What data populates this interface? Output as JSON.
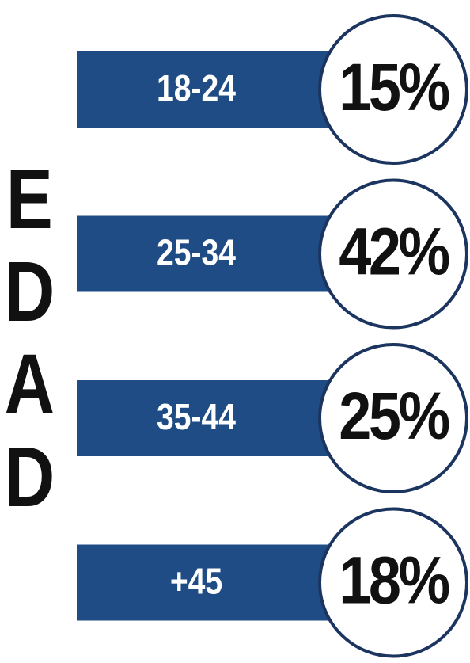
{
  "title": "EDAD",
  "rows": [
    {
      "label": "18-24",
      "value": "15%"
    },
    {
      "label": "25-34",
      "value": "42%"
    },
    {
      "label": "35-44",
      "value": "25%"
    },
    {
      "label": "+45",
      "value": "18%"
    }
  ]
}
